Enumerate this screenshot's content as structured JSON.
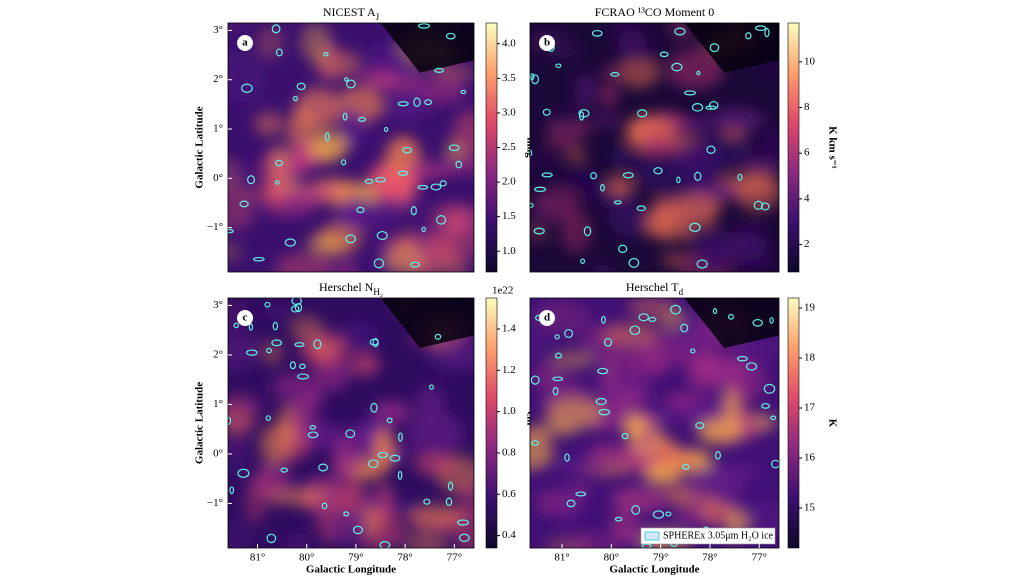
{
  "chart_data": [
    {
      "type": "image",
      "title": [
        "NICEST A",
        "J"
      ],
      "panel_label": "a",
      "xlim": [
        81.6,
        76.6
      ],
      "ylim": [
        -1.9,
        3.15
      ],
      "yticks": [
        {
          "value": -1,
          "label": "−1°"
        },
        {
          "value": 0,
          "label": "0°"
        },
        {
          "value": 1,
          "label": "1°"
        },
        {
          "value": 2,
          "label": "2°"
        },
        {
          "value": 3,
          "label": "3°"
        }
      ],
      "ylabel": "Galactic Latitude",
      "colorbar": {
        "label": "mag",
        "lim": [
          0.7,
          4.3
        ],
        "ticks": [
          {
            "value": 1,
            "label": "1.0"
          },
          1.5,
          {
            "value": 2,
            "label": "2.0"
          },
          2.5,
          {
            "value": 3,
            "label": "3.0"
          },
          3.5,
          {
            "value": 4,
            "label": "4.0"
          }
        ]
      }
    },
    {
      "type": "image",
      "title": [
        "FCRAO ¹³CO Moment 0"
      ],
      "panel_label": "b",
      "xlim": [
        81.65,
        76.6
      ],
      "ylim": [
        -1.9,
        3.15
      ],
      "colorbar": {
        "label": "K km s⁻¹",
        "lim": [
          0.8,
          11.7
        ],
        "ticks": [
          2,
          4,
          6,
          8,
          10
        ]
      }
    },
    {
      "type": "image",
      "title": [
        "Herschel N",
        "H₂"
      ],
      "panel_label": "c",
      "xlim": [
        81.6,
        76.6
      ],
      "ylim": [
        -1.9,
        3.15
      ],
      "xticks": [
        {
          "value": 81,
          "label": "81°"
        },
        {
          "value": 80,
          "label": "80°"
        },
        {
          "value": 79,
          "label": "79°"
        },
        {
          "value": 78,
          "label": "78°"
        },
        {
          "value": 77,
          "label": "77°"
        }
      ],
      "yticks": [
        {
          "value": -1,
          "label": "−1°"
        },
        {
          "value": 0,
          "label": "0°"
        },
        {
          "value": 1,
          "label": "1°"
        },
        {
          "value": 2,
          "label": "2°"
        },
        {
          "value": 3,
          "label": "3°"
        }
      ],
      "xlabel": "Galactic Longitude",
      "ylabel": "Galactic Latitude",
      "colorbar": {
        "label": "cm⁻²",
        "offset": "1e22",
        "lim": [
          0.34,
          1.55
        ],
        "ticks": [
          0.4,
          0.6,
          0.8,
          {
            "value": 1,
            "label": "1.0"
          },
          1.2,
          1.4
        ]
      }
    },
    {
      "type": "image",
      "title": [
        "Herschel T",
        "d"
      ],
      "panel_label": "d",
      "xlim": [
        81.65,
        76.6
      ],
      "ylim": [
        -1.9,
        3.15
      ],
      "xticks": [
        {
          "value": 81,
          "label": "81°"
        },
        {
          "value": 80,
          "label": "80°"
        },
        {
          "value": 79,
          "label": "79°"
        },
        {
          "value": 78,
          "label": "78°"
        },
        {
          "value": 77,
          "label": "77°"
        }
      ],
      "xlabel": "Galactic Longitude",
      "legend": "SPHEREx 3.05μm H₂O ice",
      "colorbar": {
        "label": "K",
        "lim": [
          14.2,
          19.2
        ],
        "ticks": [
          15,
          16,
          17,
          18,
          19
        ]
      }
    }
  ]
}
